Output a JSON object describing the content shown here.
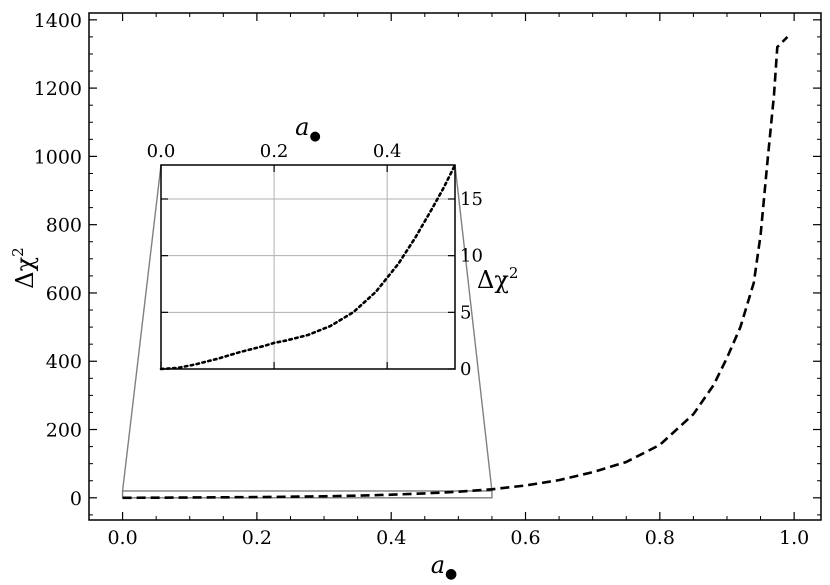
{
  "chart_data": [
    {
      "id": "main",
      "type": "line",
      "xlabel": "a",
      "xlabel_subscript": "●",
      "ylabel": "Δχ",
      "ylabel_sup": "2",
      "xlim": [
        -0.05,
        1.04
      ],
      "ylim": [
        -65,
        1420
      ],
      "xticks": [
        0.0,
        0.2,
        0.4,
        0.6,
        0.8,
        1.0
      ],
      "xtick_labels": [
        "0.0",
        "0.2",
        "0.4",
        "0.6",
        "0.8",
        "1.0"
      ],
      "yticks": [
        0,
        200,
        400,
        600,
        800,
        1000,
        1200,
        1400
      ],
      "ytick_labels": [
        "0",
        "200",
        "400",
        "600",
        "800",
        "1000",
        "1200",
        "1400"
      ],
      "grid": false,
      "series": [
        {
          "style": "dashed",
          "color": "#000000",
          "x": [
            0.0,
            0.05,
            0.1,
            0.15,
            0.2,
            0.25,
            0.3,
            0.35,
            0.4,
            0.45,
            0.5,
            0.55,
            0.6,
            0.65,
            0.7,
            0.75,
            0.8,
            0.85,
            0.88,
            0.9,
            0.92,
            0.94,
            0.95,
            0.96,
            0.97,
            0.975,
            0.99
          ],
          "y": [
            0,
            0.3,
            0.8,
            1.4,
            2.2,
            3.2,
            4.5,
            6.5,
            9,
            13,
            18,
            25,
            36,
            52,
            75,
            105,
            155,
            245,
            330,
            410,
            500,
            630,
            770,
            980,
            1180,
            1320,
            1350
          ]
        }
      ],
      "zoom_region": {
        "x": [
          0.0,
          0.55
        ],
        "y": [
          0,
          20
        ]
      }
    },
    {
      "id": "inset",
      "type": "line",
      "xlabel": "a",
      "xlabel_subscript": "●",
      "ylabel": "Δχ",
      "ylabel_sup": "2",
      "xlim": [
        0.0,
        0.52
      ],
      "ylim": [
        0,
        18
      ],
      "xticks": [
        0.0,
        0.2,
        0.4
      ],
      "xtick_labels": [
        "0.0",
        "0.2",
        "0.4"
      ],
      "yticks": [
        0,
        5,
        10,
        15
      ],
      "ytick_labels": [
        "0",
        "5",
        "10",
        "15"
      ],
      "x_axis_position": "top",
      "y_axis_position": "right",
      "grid": true,
      "series": [
        {
          "style": "dotted",
          "color": "#000000",
          "x": [
            0.0,
            0.03,
            0.06,
            0.1,
            0.14,
            0.18,
            0.2,
            0.22,
            0.26,
            0.3,
            0.34,
            0.38,
            0.42,
            0.45,
            0.48,
            0.5,
            0.52
          ],
          "y": [
            0,
            0.1,
            0.4,
            0.9,
            1.5,
            2.0,
            2.3,
            2.5,
            3.0,
            3.8,
            5.0,
            6.8,
            9.3,
            11.6,
            14.2,
            16.0,
            18.0
          ]
        }
      ]
    }
  ]
}
